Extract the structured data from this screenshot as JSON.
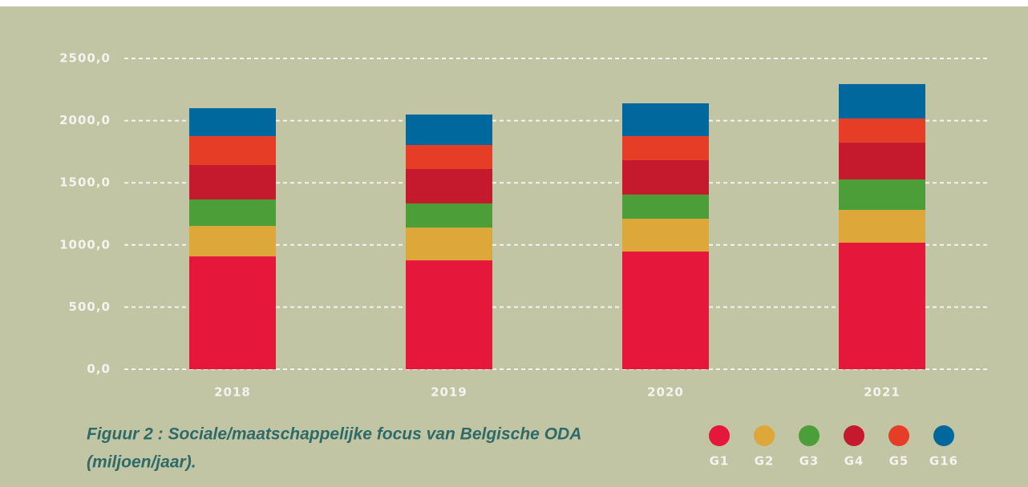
{
  "chart_data": {
    "type": "stacked_bar",
    "categories": [
      "2018",
      "2019",
      "2020",
      "2021"
    ],
    "series": [
      {
        "name": "G1",
        "color": "#e5173a",
        "values": [
          908,
          876,
          947,
          1018
        ]
      },
      {
        "name": "G2",
        "color": "#dda73a",
        "values": [
          245,
          264,
          264,
          264
        ]
      },
      {
        "name": "G3",
        "color": "#4c9f38",
        "values": [
          213,
          194,
          194,
          245
        ]
      },
      {
        "name": "G4",
        "color": "#c5192d",
        "values": [
          277,
          277,
          277,
          296
        ]
      },
      {
        "name": "G5",
        "color": "#e53d26",
        "values": [
          232,
          193,
          193,
          194
        ]
      },
      {
        "name": "G16",
        "color": "#00689d",
        "values": [
          225,
          245,
          264,
          277
        ]
      }
    ],
    "ylim": [
      0,
      2500
    ],
    "yticks": [
      {
        "value": 0,
        "label": "0,0"
      },
      {
        "value": 500,
        "label": "500,0"
      },
      {
        "value": 1000,
        "label": "1000,0"
      },
      {
        "value": 1500,
        "label": "1500,0"
      },
      {
        "value": 2000,
        "label": "2000,0"
      },
      {
        "value": 2500,
        "label": "2500,0"
      }
    ],
    "grid": true,
    "caption": [
      "Figuur 2 : Sociale/maatschappelijke focus van Belgische ODA",
      "(miljoen/jaar)."
    ]
  }
}
